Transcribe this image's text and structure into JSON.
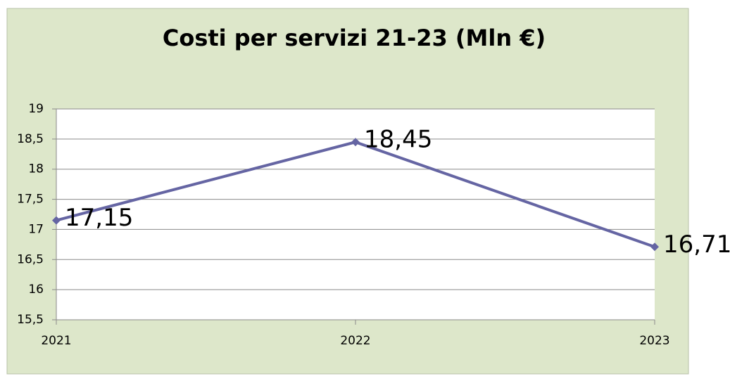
{
  "chart_data": {
    "type": "line",
    "title": "Costi per servizi 21-23 (Mln €)",
    "categories": [
      "2021",
      "2022",
      "2023"
    ],
    "series": [
      {
        "name": "Costi per servizi",
        "color": "#6565a3",
        "values": [
          17.15,
          18.45,
          16.71
        ],
        "value_labels": [
          "17,15",
          "18,45",
          "16,71"
        ]
      }
    ],
    "ylim": [
      15.5,
      19
    ],
    "yticks": [
      {
        "value": 15.5,
        "label": "15,5"
      },
      16,
      {
        "value": 16.5,
        "label": "16,5"
      },
      17,
      {
        "value": 17.5,
        "label": "17,5"
      },
      18,
      {
        "value": 18.5,
        "label": "18,5"
      },
      19
    ],
    "grid": true
  }
}
